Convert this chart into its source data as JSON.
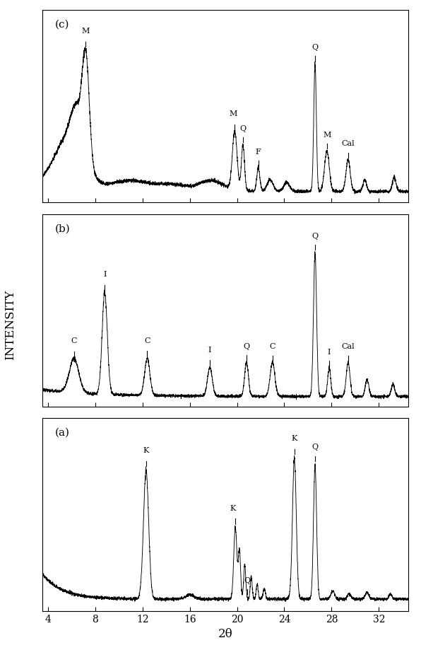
{
  "xlim": [
    3.5,
    34.5
  ],
  "xticks": [
    4,
    8,
    12,
    16,
    20,
    24,
    28,
    32
  ],
  "xlabel": "2θ",
  "ylabel": "INTENSITY",
  "panel_labels": [
    "(c)",
    "(b)",
    "(a)"
  ],
  "background_color": "#ffffff",
  "line_color": "#000000",
  "figsize": [
    5.96,
    9.19
  ],
  "dpi": 100
}
